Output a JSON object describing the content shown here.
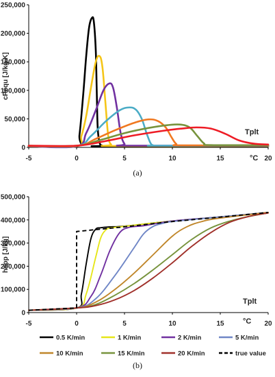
{
  "chart_data": [
    {
      "type": "line",
      "panel_label": "(a)",
      "ylabel": "cPequ [J/kg.K]",
      "unit_label": "°C",
      "annotation": "Tplt",
      "xlim": [
        -5,
        20
      ],
      "ylim": [
        0,
        250000
      ],
      "x_ticks": [
        -5,
        0,
        5,
        10,
        15,
        20
      ],
      "y_ticks": [
        0,
        50000,
        100000,
        150000,
        200000,
        250000
      ],
      "x_tick_labels": [
        "-5",
        "0",
        "5",
        "10",
        "15",
        "20"
      ],
      "y_tick_labels": [
        "0",
        "50,000",
        "100,000",
        "150,000",
        "200,000",
        "250,000"
      ],
      "series": [
        {
          "color": "#000000",
          "x": [
            -5,
            0,
            0.3,
            0.7,
            1.0,
            1.3,
            1.6,
            1.8,
            2.0,
            2.1,
            2.2,
            2.4,
            2.7,
            3.0,
            20
          ],
          "y": [
            2000,
            2000,
            22000,
            95000,
            160000,
            210000,
            227000,
            220000,
            170000,
            100000,
            35000,
            8000,
            3000,
            2000,
            2000
          ]
        },
        {
          "color": "#f5c518",
          "x": [
            -5,
            0,
            0.5,
            1.0,
            1.5,
            2.0,
            2.4,
            2.7,
            3.0,
            3.3,
            3.6,
            4.0,
            20
          ],
          "y": [
            2000,
            2000,
            20000,
            55000,
            105000,
            150000,
            160000,
            140000,
            80000,
            20000,
            5000,
            2500,
            2500
          ]
        },
        {
          "color": "#7030a0",
          "x": [
            -5,
            0,
            1.0,
            2.0,
            2.8,
            3.4,
            3.8,
            4.2,
            4.6,
            5.0,
            5.5,
            20
          ],
          "y": [
            2000,
            2000,
            25000,
            65000,
            100000,
            112000,
            105000,
            70000,
            25000,
            6000,
            3000,
            3000
          ]
        },
        {
          "color": "#4bacc6",
          "x": [
            -5,
            0,
            1.5,
            3.0,
            4.5,
            5.5,
            6.2,
            6.8,
            7.3,
            7.7,
            8.0,
            8.5,
            20
          ],
          "y": [
            2500,
            2500,
            20000,
            45000,
            65000,
            70000,
            66000,
            50000,
            25000,
            8000,
            3500,
            3000,
            3000
          ]
        },
        {
          "color": "#f07820",
          "x": [
            -5,
            0,
            2.0,
            4.0,
            6.0,
            7.5,
            8.5,
            9.3,
            9.9,
            10.4,
            11.0,
            20
          ],
          "y": [
            2500,
            2500,
            15000,
            30000,
            43000,
            49000,
            46000,
            35000,
            18000,
            6000,
            3500,
            3500
          ]
        },
        {
          "color": "#77933c",
          "x": [
            -5,
            0,
            2.5,
            5.0,
            7.5,
            9.5,
            10.8,
            11.8,
            12.6,
            13.3,
            14.0,
            20
          ],
          "y": [
            3000,
            3000,
            13000,
            25000,
            34000,
            39000,
            40000,
            35000,
            20000,
            7000,
            4000,
            4000
          ]
        },
        {
          "color": "#ee1c25",
          "x": [
            -5,
            0,
            3.0,
            6.0,
            9.0,
            11.0,
            12.5,
            14.0,
            15.5,
            17.0,
            18.5,
            20
          ],
          "y": [
            3000,
            3000,
            11000,
            21000,
            29000,
            33000,
            35000,
            33000,
            24000,
            12000,
            6500,
            5000
          ]
        }
      ]
    },
    {
      "type": "line",
      "panel_label": "(b)",
      "ylabel": "happ [J/kg]",
      "unit_label": "°C",
      "annotation": "Tplt",
      "xlim": [
        -5,
        20
      ],
      "ylim": [
        0,
        500000
      ],
      "x_ticks": [
        -5,
        0,
        5,
        10,
        15,
        20
      ],
      "y_ticks": [
        0,
        100000,
        200000,
        300000,
        400000,
        500000
      ],
      "x_tick_labels": [
        "-5",
        "0",
        "5",
        "10",
        "15",
        "20"
      ],
      "y_tick_labels": [
        "0",
        "100,000",
        "200,000",
        "300,000",
        "400,000",
        "500,000"
      ],
      "series": [
        {
          "name": "0.5 K/min",
          "color": "#000000",
          "dash": false,
          "x": [
            -5,
            0,
            0.5,
            1.0,
            1.5,
            2.0,
            2.5,
            3.5,
            5,
            10,
            15,
            20
          ],
          "y": [
            10000,
            20000,
            80000,
            210000,
            320000,
            360000,
            366000,
            370000,
            373000,
            395000,
            413000,
            432000
          ]
        },
        {
          "name": "1 K/min",
          "color": "#e6e619",
          "dash": false,
          "x": [
            -5,
            0,
            1.0,
            2.0,
            2.5,
            3.0,
            3.5,
            4.5,
            10,
            15,
            20
          ],
          "y": [
            10000,
            20000,
            80000,
            240000,
            320000,
            355000,
            365000,
            370000,
            395000,
            413000,
            432000
          ]
        },
        {
          "name": "2 K/min",
          "color": "#7030a0",
          "dash": false,
          "x": [
            -5,
            0,
            1.5,
            2.5,
            3.5,
            4.5,
            5.5,
            7,
            10,
            15,
            20
          ],
          "y": [
            10000,
            20000,
            70000,
            160000,
            270000,
            345000,
            368000,
            375000,
            395000,
            413000,
            432000
          ]
        },
        {
          "name": "5 K/min",
          "color": "#6f86c6",
          "dash": false,
          "x": [
            -5,
            0,
            2,
            4,
            6,
            7,
            8,
            9,
            10,
            15,
            20
          ],
          "y": [
            10000,
            20000,
            60000,
            160000,
            280000,
            340000,
            372000,
            385000,
            393000,
            413000,
            432000
          ]
        },
        {
          "name": "10 K/min",
          "color": "#c0862a",
          "dash": false,
          "x": [
            -5,
            0,
            2,
            4,
            6,
            8,
            10,
            11.5,
            13,
            15,
            20
          ],
          "y": [
            10000,
            20000,
            45000,
            100000,
            170000,
            250000,
            330000,
            370000,
            392000,
            408000,
            432000
          ]
        },
        {
          "name": "15 K/min",
          "color": "#77933c",
          "dash": false,
          "x": [
            -5,
            0,
            2,
            4,
            6,
            8,
            10,
            12,
            14,
            16,
            18,
            20
          ],
          "y": [
            10000,
            20000,
            35000,
            75000,
            125000,
            185000,
            250000,
            315000,
            365000,
            395000,
            415000,
            430000
          ]
        },
        {
          "name": "20 K/min",
          "color": "#a0302a",
          "dash": false,
          "x": [
            -5,
            0,
            2,
            4,
            6,
            8,
            10,
            12,
            14,
            16,
            18,
            20
          ],
          "y": [
            10000,
            20000,
            30000,
            55000,
            95000,
            150000,
            215000,
            285000,
            345000,
            390000,
            415000,
            430000
          ]
        },
        {
          "name": "true value",
          "color": "#000000",
          "dash": true,
          "x": [
            -5,
            0,
            0.001,
            5,
            10,
            15,
            20
          ],
          "y": [
            10000,
            20000,
            350000,
            370000,
            393000,
            412000,
            432000
          ]
        }
      ]
    }
  ]
}
